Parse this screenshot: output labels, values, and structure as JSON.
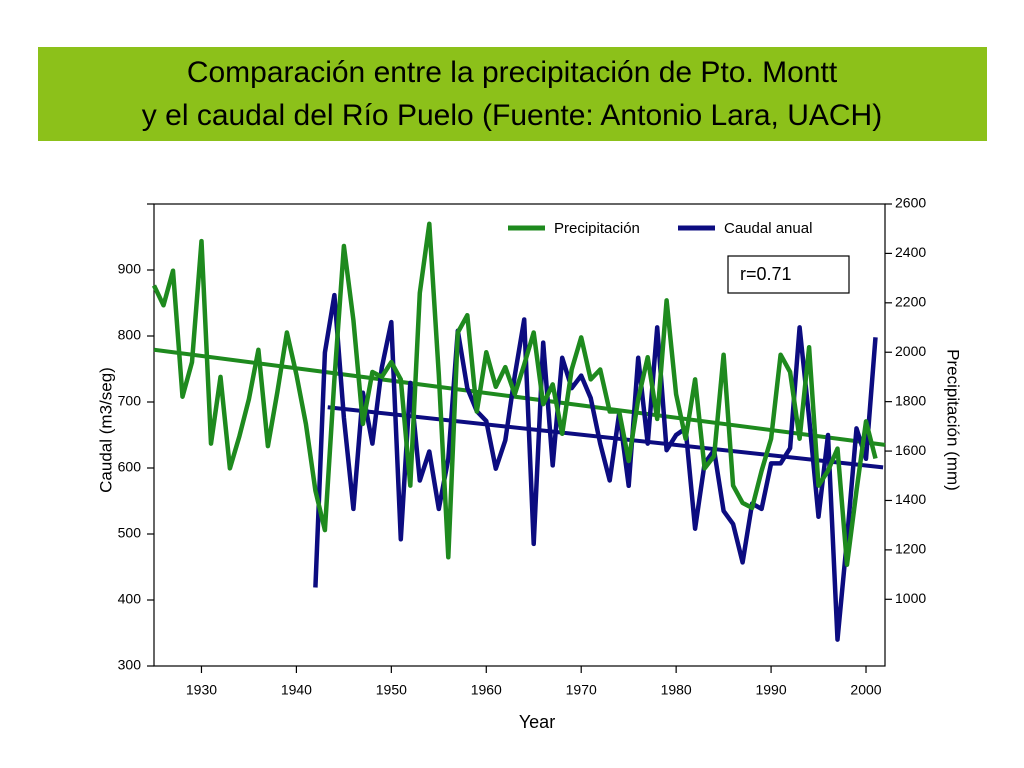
{
  "chart_data": {
    "type": "line",
    "title": [
      "Comparación entre la precipitación de Pto. Montt",
      "y el caudal del Río Puelo (Fuente: Antonio Lara, UACH)"
    ],
    "xlabel": "Year",
    "ylabel": "Caudal  (m3/seg)",
    "y2label": "Precipitación (mm)",
    "annotation": "r=0.71",
    "x": [
      1925,
      1926,
      1927,
      1928,
      1929,
      1930,
      1931,
      1932,
      1933,
      1934,
      1935,
      1936,
      1937,
      1938,
      1939,
      1940,
      1941,
      1942,
      1943,
      1944,
      1945,
      1946,
      1947,
      1948,
      1949,
      1950,
      1951,
      1952,
      1953,
      1954,
      1955,
      1956,
      1957,
      1958,
      1959,
      1960,
      1961,
      1962,
      1963,
      1964,
      1965,
      1966,
      1967,
      1968,
      1969,
      1970,
      1971,
      1972,
      1973,
      1974,
      1975,
      1976,
      1977,
      1978,
      1979,
      1980,
      1981,
      1982,
      1983,
      1984,
      1985,
      1986,
      1987,
      1988,
      1989,
      1990,
      1991,
      1992,
      1993,
      1994,
      1995,
      1996,
      1997,
      1998,
      1999,
      2000,
      2001
    ],
    "series": [
      {
        "name": "Precipitación",
        "color": "#1e8a1e",
        "axis": "y2",
        "values": [
          2270,
          2190,
          2330,
          1820,
          1960,
          2450,
          1630,
          1900,
          1530,
          1660,
          1810,
          2010,
          1620,
          1840,
          2080,
          1910,
          1710,
          1440,
          1280,
          1890,
          2430,
          2130,
          1710,
          1920,
          1900,
          1960,
          1890,
          1460,
          2240,
          2520,
          1910,
          1170,
          2080,
          2150,
          1760,
          2000,
          1860,
          1940,
          1830,
          1950,
          2080,
          1790,
          1870,
          1670,
          1930,
          2060,
          1890,
          1930,
          1760,
          1760,
          1560,
          1810,
          1980,
          1730,
          2210,
          1830,
          1650,
          1890,
          1530,
          1580,
          1990,
          1460,
          1390,
          1370,
          1520,
          1650,
          1990,
          1920,
          1650,
          2020,
          1460,
          1520,
          1610,
          1140,
          1440,
          1720,
          1570
        ]
      },
      {
        "name": "Caudal anual",
        "color": "#0c0c80",
        "values": [
          null,
          null,
          null,
          null,
          null,
          null,
          null,
          null,
          null,
          null,
          null,
          null,
          null,
          null,
          null,
          null,
          null,
          419,
          775,
          862,
          676,
          538,
          714,
          637,
          752,
          821,
          492,
          729,
          581,
          625,
          538,
          614,
          808,
          721,
          686,
          671,
          599,
          642,
          740,
          825,
          485,
          790,
          604,
          767,
          721,
          740,
          706,
          637,
          581,
          683,
          573,
          767,
          637,
          813,
          627,
          650,
          660,
          508,
          607,
          627,
          535,
          515,
          457,
          546,
          538,
          607,
          607,
          630,
          813,
          676,
          526,
          650,
          340,
          492,
          660,
          614,
          798
        ]
      }
    ],
    "trend_lines": [
      {
        "color": "#1e8a1e",
        "axis": "y2",
        "x": [
          1925,
          2002
        ],
        "values": [
          2010,
          1625
        ]
      },
      {
        "color": "#0c0c80",
        "x": [
          1943.3,
          2001.8
        ],
        "values": [
          692,
          601
        ]
      }
    ],
    "xlim": [
      1925,
      2002
    ],
    "xticks": [
      1930,
      1940,
      1950,
      1960,
      1970,
      1980,
      1990,
      2000
    ],
    "ylim": [
      300,
      1000
    ],
    "yticks": [
      300,
      400,
      500,
      600,
      700,
      800,
      900
    ],
    "y2lim": [
      730,
      2600
    ],
    "y2ticks": [
      1000,
      1200,
      1400,
      1600,
      1800,
      2000,
      2200,
      2400,
      2600
    ]
  }
}
